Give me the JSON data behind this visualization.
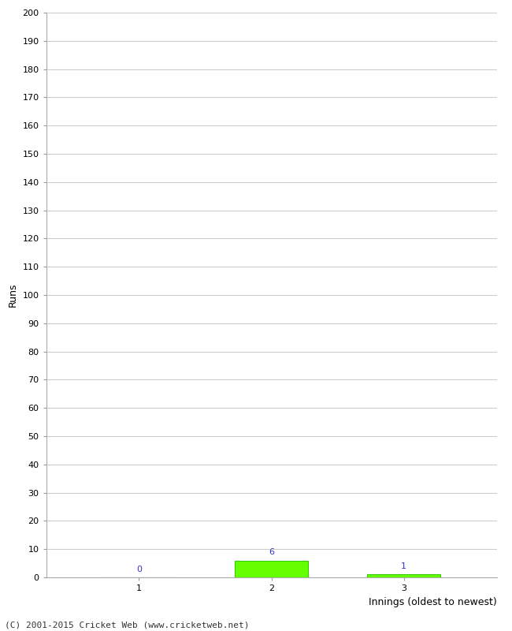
{
  "title": "",
  "xlabel": "Innings (oldest to newest)",
  "ylabel": "Runs",
  "categories": [
    1,
    2,
    3
  ],
  "values": [
    0,
    6,
    1
  ],
  "bar_color": "#66ff00",
  "bar_edge_color": "#33cc00",
  "value_labels": [
    "0",
    "6",
    "1"
  ],
  "value_label_color": "#3333cc",
  "ylim": [
    0,
    200
  ],
  "yticks": [
    0,
    10,
    20,
    30,
    40,
    50,
    60,
    70,
    80,
    90,
    100,
    110,
    120,
    130,
    140,
    150,
    160,
    170,
    180,
    190,
    200
  ],
  "grid_color": "#cccccc",
  "background_color": "#ffffff",
  "footer_text": "(C) 2001-2015 Cricket Web (www.cricketweb.net)",
  "footer_color": "#333333",
  "axis_label_fontsize": 9,
  "tick_fontsize": 8,
  "value_label_fontsize": 8,
  "footer_fontsize": 8,
  "bar_width": 0.55
}
